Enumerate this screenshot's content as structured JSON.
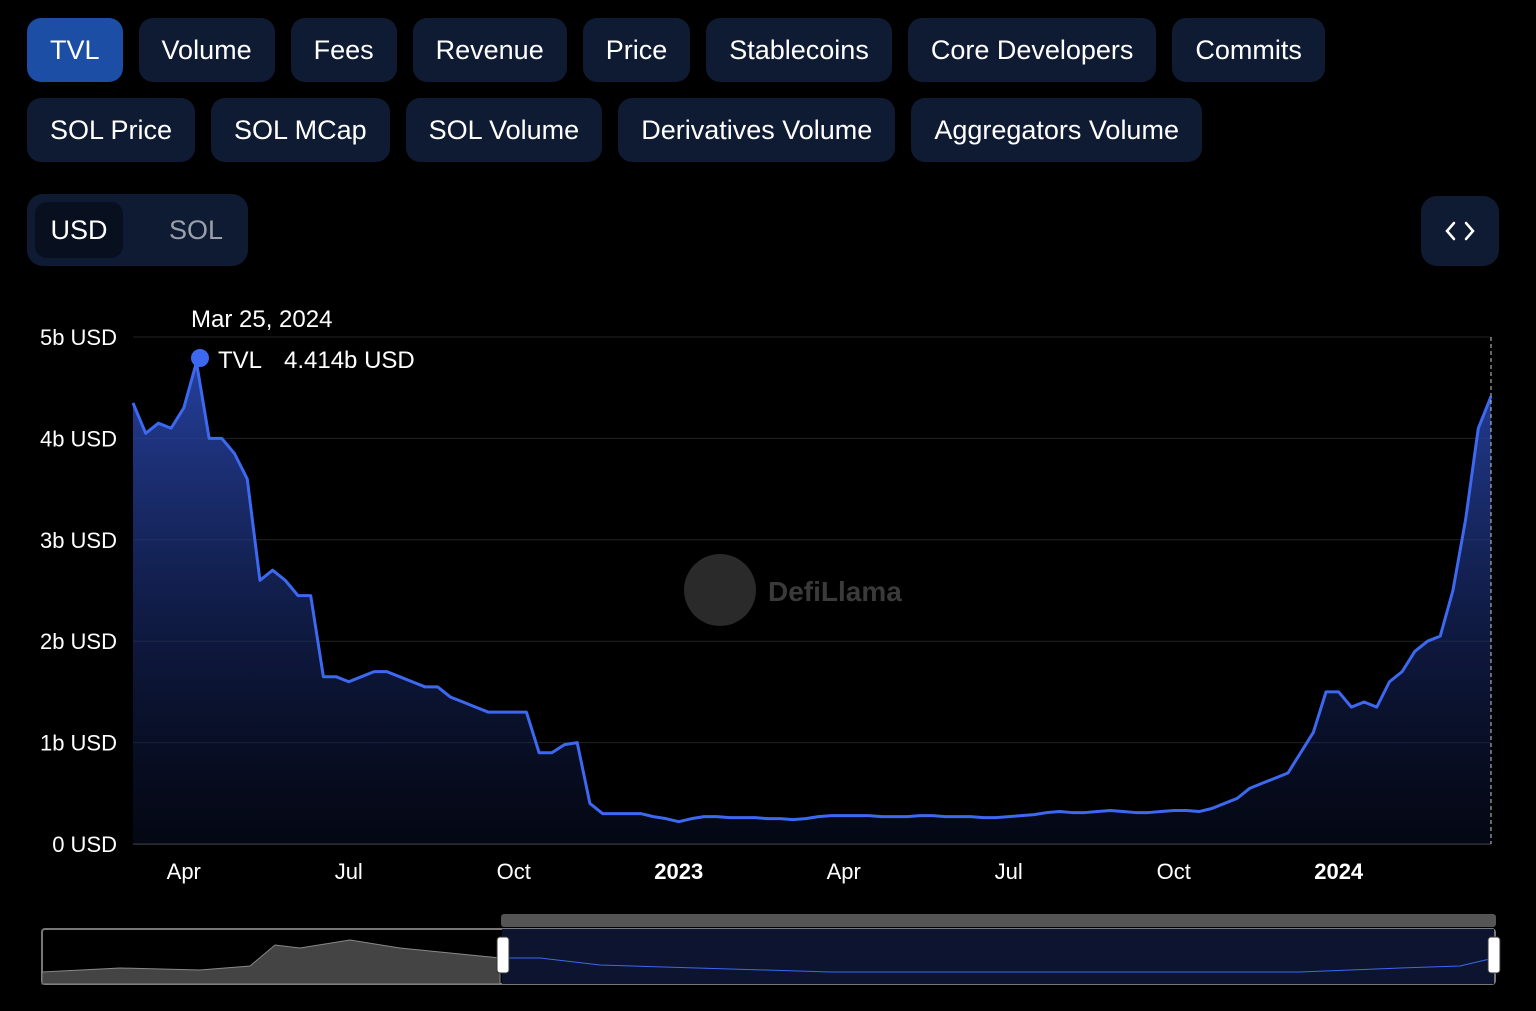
{
  "tabs": [
    "TVL",
    "Volume",
    "Fees",
    "Revenue",
    "Price",
    "Stablecoins",
    "Core Developers",
    "Commits",
    "SOL Price",
    "SOL MCap",
    "SOL Volume",
    "Derivatives Volume",
    "Aggregators Volume"
  ],
  "currency_options": [
    "USD",
    "SOL"
  ],
  "watermark": "DefiLlama",
  "chart_data": {
    "type": "area",
    "categories": [
      null,
      null,
      null,
      null,
      "Apr",
      null,
      null,
      null,
      null,
      null,
      null,
      null,
      null,
      null,
      null,
      null,
      null,
      "Jul",
      null,
      null,
      null,
      null,
      null,
      null,
      null,
      null,
      null,
      null,
      null,
      null,
      "Oct",
      null,
      null,
      null,
      null,
      null,
      null,
      null,
      null,
      null,
      null,
      null,
      null,
      "2023",
      null,
      null,
      null,
      null,
      null,
      null,
      null,
      null,
      null,
      null,
      null,
      null,
      "Apr",
      null,
      null,
      null,
      null,
      null,
      null,
      null,
      null,
      null,
      null,
      null,
      null,
      "Jul",
      null,
      null,
      null,
      null,
      null,
      null,
      null,
      null,
      null,
      null,
      null,
      null,
      "Oct",
      null,
      null,
      null,
      null,
      null,
      null,
      null,
      null,
      null,
      null,
      null,
      null,
      "2024",
      null,
      null,
      null,
      null,
      null,
      null,
      null,
      null,
      null,
      null,
      null,
      null
    ],
    "series": [
      {
        "name": "TVL",
        "color": "#3d68f0",
        "values": [
          4.35,
          4.05,
          4.15,
          4.1,
          4.3,
          4.75,
          4.0,
          4.0,
          3.85,
          3.6,
          2.6,
          2.7,
          2.6,
          2.45,
          2.45,
          1.65,
          1.65,
          1.6,
          1.65,
          1.7,
          1.7,
          1.65,
          1.6,
          1.55,
          1.55,
          1.45,
          1.4,
          1.35,
          1.3,
          1.3,
          1.3,
          1.3,
          0.9,
          0.9,
          0.98,
          1.0,
          0.4,
          0.3,
          0.3,
          0.3,
          0.3,
          0.27,
          0.25,
          0.22,
          0.25,
          0.27,
          0.27,
          0.26,
          0.26,
          0.26,
          0.25,
          0.25,
          0.24,
          0.25,
          0.27,
          0.28,
          0.28,
          0.28,
          0.28,
          0.27,
          0.27,
          0.27,
          0.28,
          0.28,
          0.27,
          0.27,
          0.27,
          0.26,
          0.26,
          0.27,
          0.28,
          0.29,
          0.31,
          0.32,
          0.31,
          0.31,
          0.32,
          0.33,
          0.32,
          0.31,
          0.31,
          0.32,
          0.33,
          0.33,
          0.32,
          0.35,
          0.4,
          0.45,
          0.55,
          0.6,
          0.65,
          0.7,
          0.9,
          1.1,
          1.5,
          1.5,
          1.35,
          1.4,
          1.35,
          1.6,
          1.7,
          1.9,
          2.0,
          2.05,
          2.5,
          3.2,
          4.1,
          4.414
        ]
      }
    ],
    "ylim": [
      0,
      5
    ],
    "yticks": [
      {
        "value": 0,
        "label": "0 USD"
      },
      {
        "value": 1,
        "label": "1b USD"
      },
      {
        "value": 2,
        "label": "2b USD"
      },
      {
        "value": 3,
        "label": "3b USD"
      },
      {
        "value": 4,
        "label": "4b USD"
      },
      {
        "value": 5,
        "label": "5b USD"
      }
    ],
    "grid": true,
    "tooltip": {
      "x": "Mar 25, 2024",
      "value_label": "4.414b USD"
    }
  }
}
